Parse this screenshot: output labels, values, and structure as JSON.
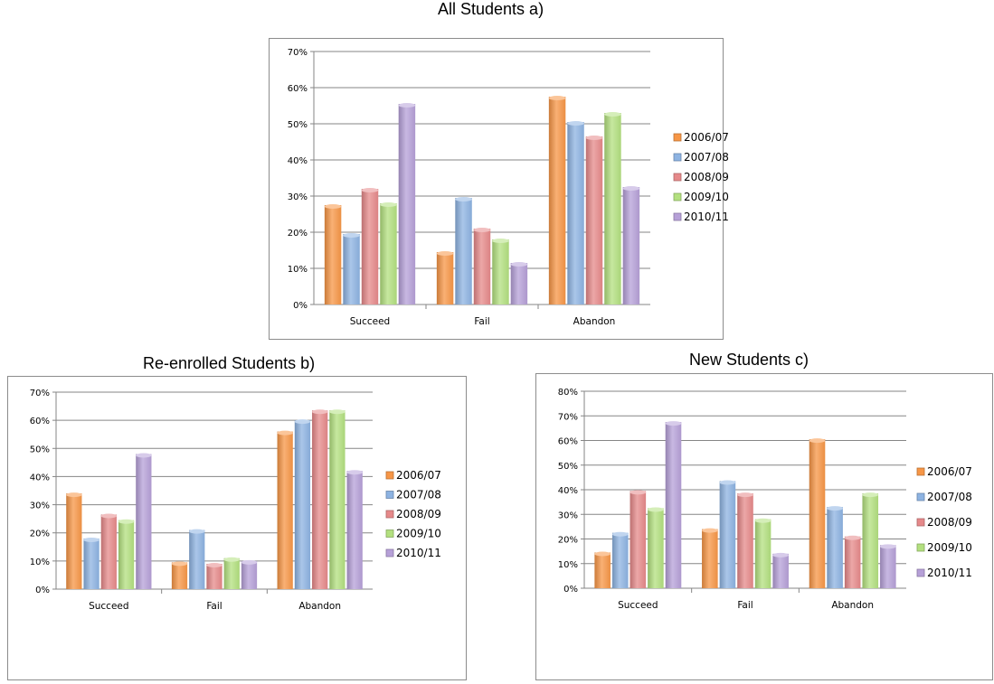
{
  "colors": {
    "2006/07": "#f79646",
    "2007/08": "#8db3e2",
    "2008/09": "#e6898a",
    "2009/10": "#b3e07f",
    "2010/11": "#b6a0d8"
  },
  "chart_data": [
    {
      "type": "bar",
      "title": "All Students a)",
      "categories": [
        "Succeed",
        "Fail",
        "Abandon"
      ],
      "ylim": [
        0,
        70
      ],
      "yticks": [
        "0%",
        "10%",
        "20%",
        "30%",
        "40%",
        "50%",
        "60%",
        "70%"
      ],
      "grid": true,
      "legend": "right",
      "series": [
        {
          "name": "2006/07",
          "values": [
            27.5,
            14.5,
            57.5
          ]
        },
        {
          "name": "2007/08",
          "values": [
            19.5,
            29.5,
            50.5
          ]
        },
        {
          "name": "2008/09",
          "values": [
            32,
            21,
            46.5
          ]
        },
        {
          "name": "2009/10",
          "values": [
            28,
            18,
            53
          ]
        },
        {
          "name": "2010/11",
          "values": [
            55.5,
            11.5,
            32.5
          ]
        }
      ]
    },
    {
      "type": "bar",
      "title": "Re-enrolled Students b)",
      "categories": [
        "Succeed",
        "Fail",
        "Abandon"
      ],
      "ylim": [
        0,
        70
      ],
      "yticks": [
        "0%",
        "10%",
        "20%",
        "30%",
        "40%",
        "50%",
        "60%",
        "70%"
      ],
      "grid": true,
      "legend": "right",
      "series": [
        {
          "name": "2006/07",
          "values": [
            34,
            9.5,
            56
          ]
        },
        {
          "name": "2007/08",
          "values": [
            18,
            21,
            60
          ]
        },
        {
          "name": "2008/09",
          "values": [
            26.5,
            9,
            63.5
          ]
        },
        {
          "name": "2009/10",
          "values": [
            24.5,
            11,
            63.5
          ]
        },
        {
          "name": "2010/11",
          "values": [
            48,
            10,
            42
          ]
        }
      ]
    },
    {
      "type": "bar",
      "title": "New Students c)",
      "categories": [
        "Succeed",
        "Fail",
        "Abandon"
      ],
      "ylim": [
        0,
        80
      ],
      "yticks": [
        "0%",
        "10%",
        "20%",
        "30%",
        "40%",
        "50%",
        "60%",
        "70%",
        "80%"
      ],
      "grid": true,
      "legend": "right",
      "series": [
        {
          "name": "2006/07",
          "values": [
            14.5,
            24,
            60.5
          ]
        },
        {
          "name": "2007/08",
          "values": [
            22.5,
            43.5,
            33
          ]
        },
        {
          "name": "2008/09",
          "values": [
            39.5,
            38.5,
            21
          ]
        },
        {
          "name": "2009/10",
          "values": [
            32.5,
            28,
            38.5
          ]
        },
        {
          "name": "2010/11",
          "values": [
            67.5,
            14,
            17.5
          ]
        }
      ]
    }
  ]
}
